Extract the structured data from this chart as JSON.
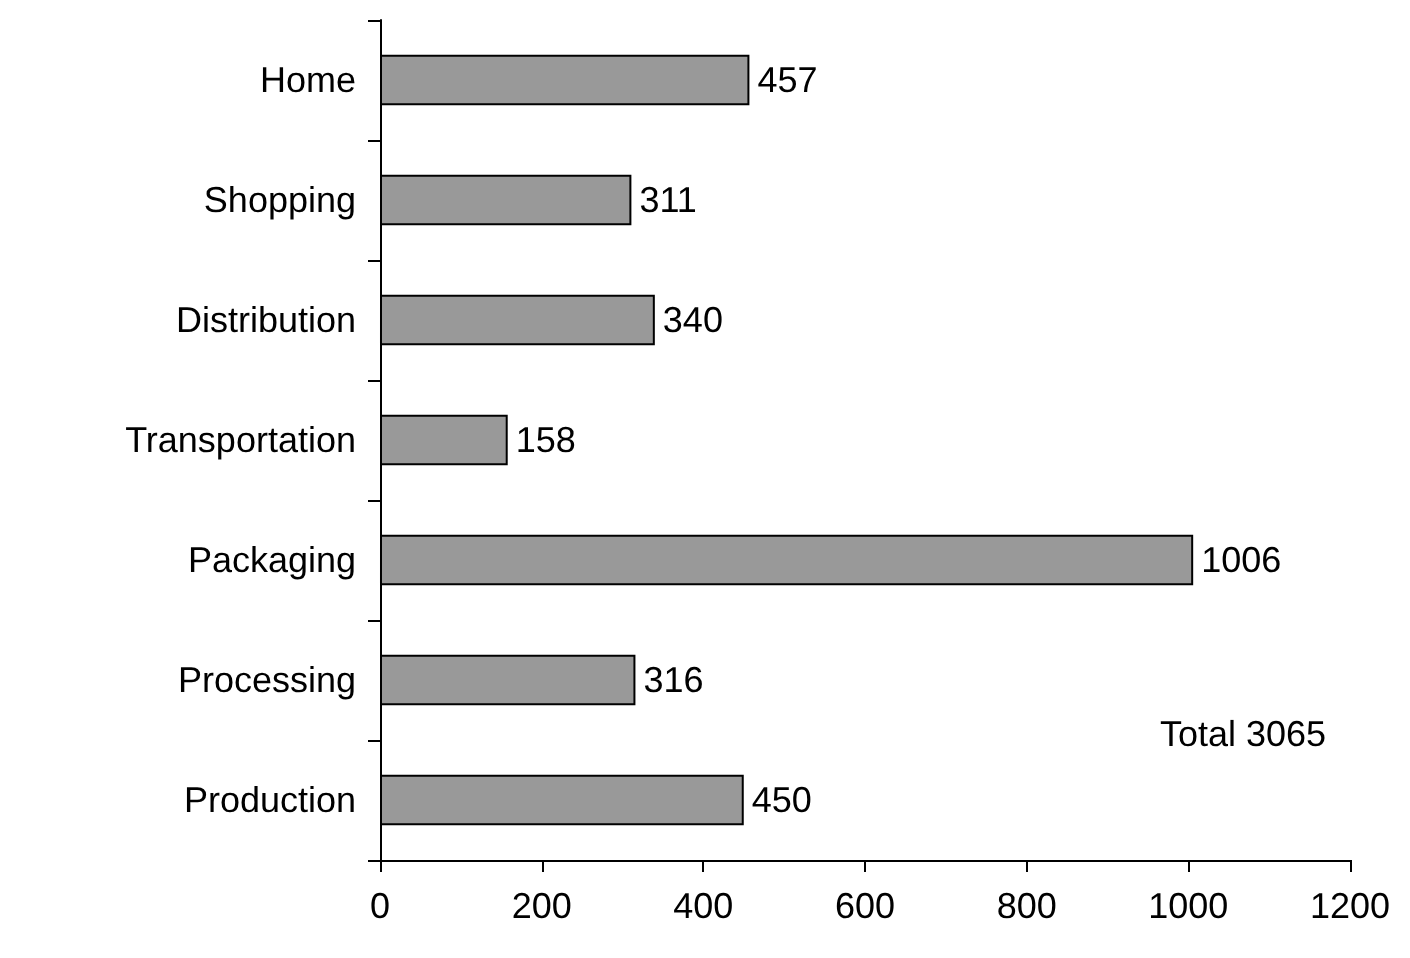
{
  "chart_data": {
    "type": "bar",
    "orientation": "horizontal",
    "categories": [
      "Home",
      "Shopping",
      "Distribution",
      "Transportation",
      "Packaging",
      "Processing",
      "Production"
    ],
    "values": [
      457,
      311,
      340,
      158,
      1006,
      316,
      450
    ],
    "color": "#999999",
    "xlim": [
      0,
      1200
    ],
    "xticks": [
      0,
      200,
      400,
      600,
      800,
      1000,
      1200
    ],
    "grid": false,
    "data_labels": true,
    "annotations": [
      "Total 3065"
    ]
  }
}
